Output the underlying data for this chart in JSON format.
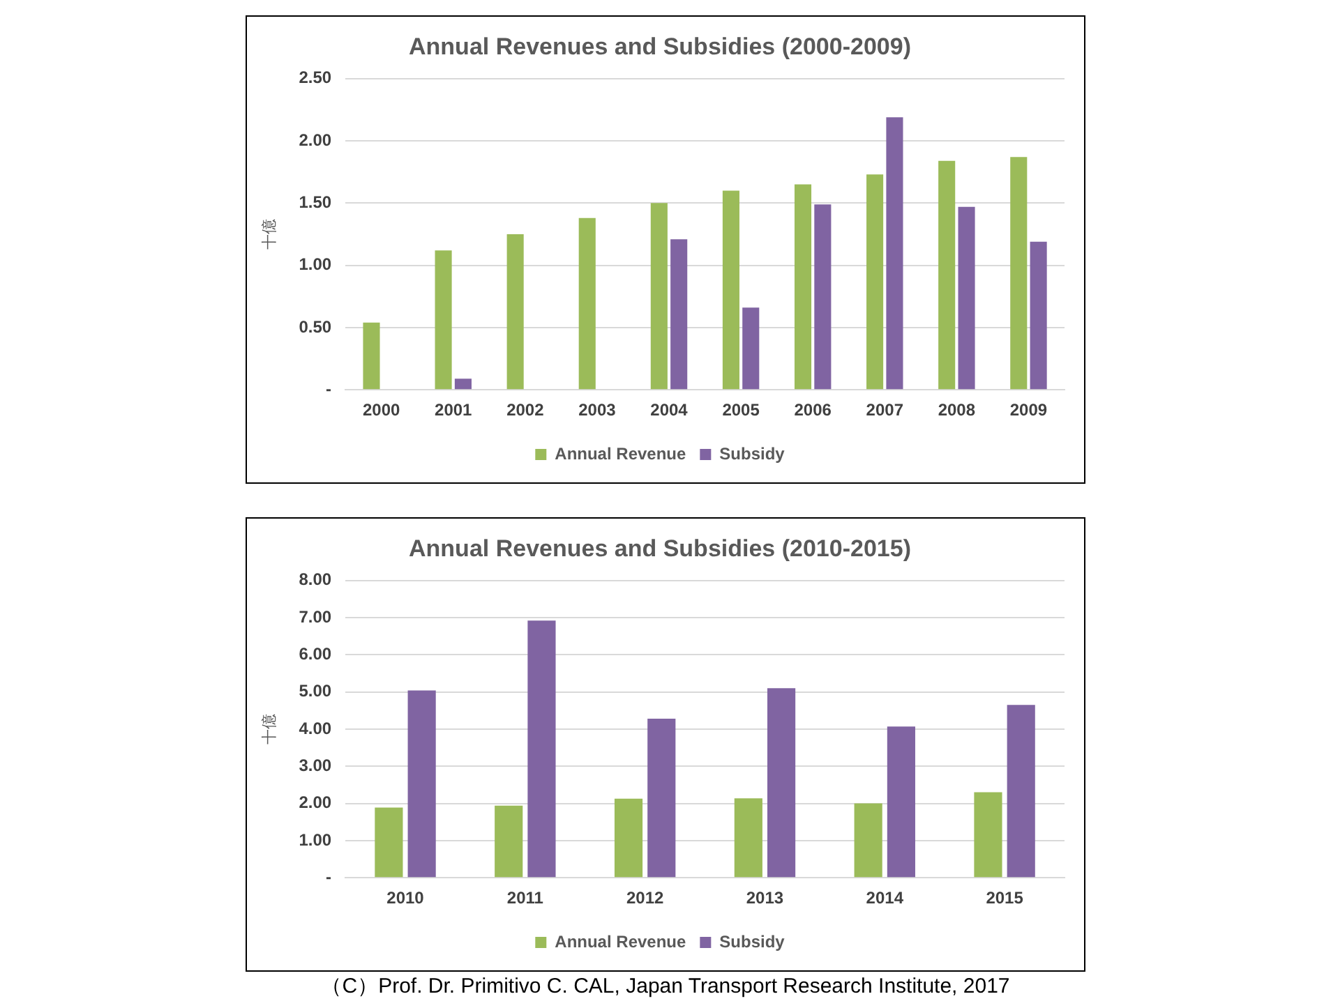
{
  "chart_data": [
    {
      "type": "bar",
      "title": "Annual Revenues and Subsidies (2000-2009)",
      "ylabel": "十億",
      "categories": [
        "2000",
        "2001",
        "2002",
        "2003",
        "2004",
        "2005",
        "2006",
        "2007",
        "2008",
        "2009"
      ],
      "series": [
        {
          "name": "Annual Revenue",
          "color": "#9bbb59",
          "values": [
            0.54,
            1.12,
            1.25,
            1.38,
            1.5,
            1.6,
            1.65,
            1.73,
            1.84,
            1.87
          ]
        },
        {
          "name": "Subsidy",
          "color": "#8064a2",
          "values": [
            null,
            0.09,
            null,
            null,
            1.21,
            0.66,
            1.49,
            2.19,
            1.47,
            1.19
          ]
        }
      ],
      "ylim": [
        0,
        2.5
      ],
      "yticks": [
        {
          "value": 0,
          "label": "-"
        },
        {
          "value": 0.5,
          "label": "0.50"
        },
        {
          "value": 1,
          "label": "1.00"
        },
        {
          "value": 1.5,
          "label": "1.50"
        },
        {
          "value": 2,
          "label": "2.00"
        },
        {
          "value": 2.5,
          "label": "2.50"
        }
      ],
      "grid": "y",
      "legend": "bottom"
    },
    {
      "type": "bar",
      "title": "Annual Revenues and Subsidies (2010-2015)",
      "ylabel": "十億",
      "categories": [
        "2010",
        "2011",
        "2012",
        "2013",
        "2014",
        "2015"
      ],
      "series": [
        {
          "name": "Annual Revenue",
          "color": "#9bbb59",
          "values": [
            1.89,
            1.94,
            2.13,
            2.14,
            2.0,
            2.3
          ]
        },
        {
          "name": "Subsidy",
          "color": "#8064a2",
          "values": [
            5.04,
            6.92,
            4.28,
            5.1,
            4.07,
            4.65
          ]
        }
      ],
      "ylim": [
        0,
        8
      ],
      "yticks": [
        {
          "value": 0,
          "label": "-"
        },
        {
          "value": 1,
          "label": "1.00"
        },
        {
          "value": 2,
          "label": "2.00"
        },
        {
          "value": 3,
          "label": "3.00"
        },
        {
          "value": 4,
          "label": "4.00"
        },
        {
          "value": 5,
          "label": "5.00"
        },
        {
          "value": 6,
          "label": "6.00"
        },
        {
          "value": 7,
          "label": "7.00"
        },
        {
          "value": 8,
          "label": "8.00"
        }
      ],
      "grid": "y",
      "legend": "bottom",
      "annotations": [
        "（C）Prof. Dr. Primitivo  C. CAL, Japan Transport Research Institute, 2017"
      ]
    }
  ]
}
